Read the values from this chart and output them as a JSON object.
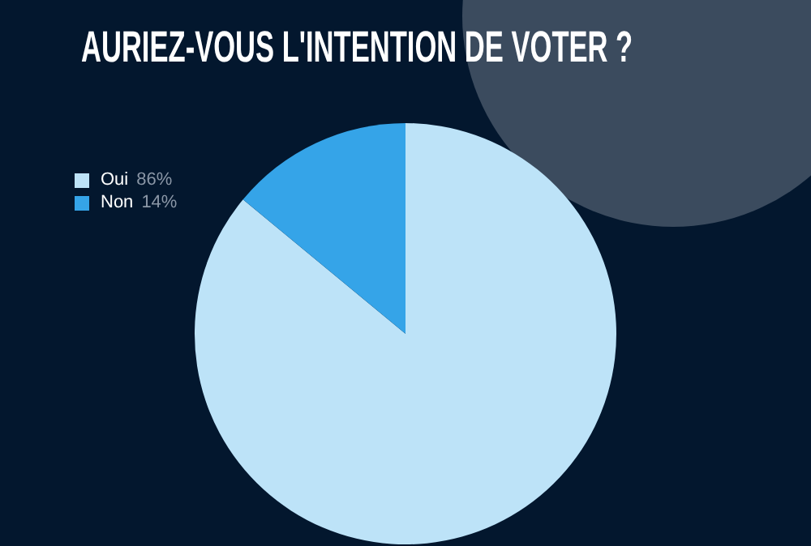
{
  "chart_data": {
    "type": "pie",
    "title": "AURIEZ-VOUS L'INTENTION DE VOTER ?",
    "categories": [
      "Oui",
      "Non"
    ],
    "values": [
      86,
      14
    ],
    "colors": [
      "#bde3f8",
      "#35a4e8"
    ],
    "value_labels": [
      "86%",
      "14%"
    ],
    "legend": "top left"
  }
}
